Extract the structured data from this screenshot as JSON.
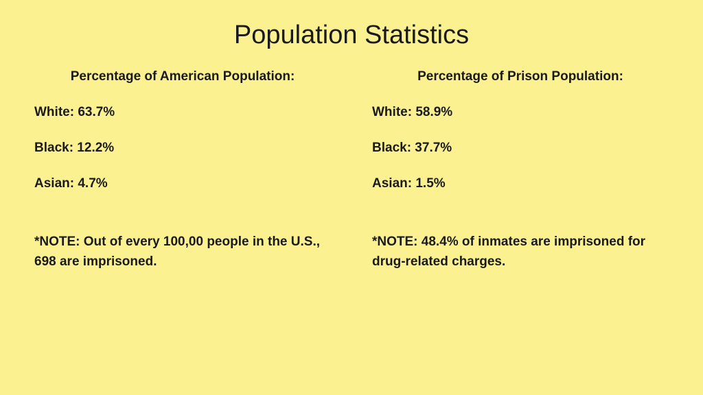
{
  "title": "Population Statistics",
  "background_color": "#fbf191",
  "text_color": "#1a1a1a",
  "title_fontsize": 38,
  "body_fontsize": 19,
  "left": {
    "heading": "Percentage of American Population:",
    "rows": [
      "White: 63.7%",
      "Black: 12.2%",
      "Asian: 4.7%"
    ],
    "note": "*NOTE: Out of every 100,00 people in the U.S., 698 are imprisoned."
  },
  "right": {
    "heading": "Percentage of Prison Population:",
    "rows": [
      "White: 58.9%",
      "Black: 37.7%",
      "Asian: 1.5%"
    ],
    "note": "*NOTE: 48.4% of inmates are imprisoned for drug-related charges."
  }
}
